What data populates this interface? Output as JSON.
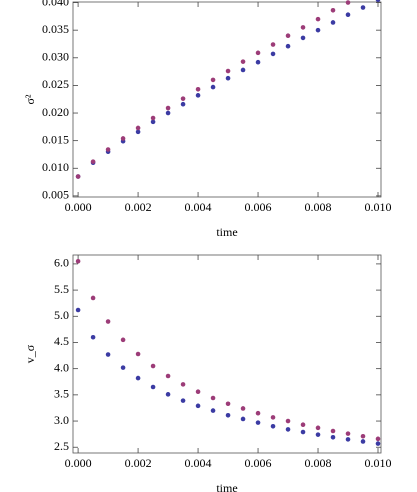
{
  "chart_data": [
    {
      "type": "scatter",
      "xlabel": "time",
      "ylabel": "σ²",
      "xlim": [
        -0.00017,
        0.0101
      ],
      "ylim": [
        0.0048,
        0.0401
      ],
      "xticks": [
        {
          "value": 0,
          "label": "0.000"
        },
        {
          "value": 0.002,
          "label": "0.002"
        },
        {
          "value": 0.004,
          "label": "0.004"
        },
        {
          "value": 0.006,
          "label": "0.006"
        },
        {
          "value": 0.008,
          "label": "0.008"
        },
        {
          "value": 0.01,
          "label": "0.010"
        }
      ],
      "yticks": [
        {
          "value": 0.005,
          "label": "0.005"
        },
        {
          "value": 0.01,
          "label": "0.010"
        },
        {
          "value": 0.015,
          "label": "0.015"
        },
        {
          "value": 0.02,
          "label": "0.020"
        },
        {
          "value": 0.025,
          "label": "0.025"
        },
        {
          "value": 0.03,
          "label": "0.030"
        },
        {
          "value": 0.035,
          "label": "0.035"
        },
        {
          "value": 0.04,
          "label": "0.040"
        }
      ],
      "series": [
        {
          "color": "#3b3ba3",
          "x": [
            0,
            0.0005,
            0.001,
            0.0015,
            0.002,
            0.0025,
            0.003,
            0.0035,
            0.004,
            0.0045,
            0.005,
            0.0055,
            0.006,
            0.0065,
            0.007,
            0.0075,
            0.008,
            0.0085,
            0.009,
            0.0095,
            0.01
          ],
          "values": [
            0.0085,
            0.011,
            0.013,
            0.0149,
            0.0166,
            0.0184,
            0.02,
            0.0216,
            0.0232,
            0.0247,
            0.0263,
            0.0278,
            0.0292,
            0.0307,
            0.0321,
            0.0336,
            0.035,
            0.0364,
            0.0378,
            0.0391,
            0.0405
          ]
        },
        {
          "color": "#9c3c78",
          "x": [
            0,
            0.0005,
            0.001,
            0.0015,
            0.002,
            0.0025,
            0.003,
            0.0035,
            0.004,
            0.0045,
            0.005,
            0.0055,
            0.006,
            0.0065,
            0.007,
            0.0075,
            0.008,
            0.0085,
            0.009
          ],
          "values": [
            0.0085,
            0.0112,
            0.0134,
            0.0154,
            0.0173,
            0.0191,
            0.0209,
            0.0226,
            0.0243,
            0.026,
            0.0276,
            0.0293,
            0.0309,
            0.0324,
            0.034,
            0.0355,
            0.037,
            0.0386,
            0.04
          ]
        }
      ]
    },
    {
      "type": "scatter",
      "xlabel": "time",
      "ylabel": "v_σ",
      "xlim": [
        -0.00017,
        0.0101
      ],
      "ylim": [
        2.39,
        6.17
      ],
      "xticks": [
        {
          "value": 0,
          "label": "0.000"
        },
        {
          "value": 0.002,
          "label": "0.002"
        },
        {
          "value": 0.004,
          "label": "0.004"
        },
        {
          "value": 0.006,
          "label": "0.006"
        },
        {
          "value": 0.008,
          "label": "0.008"
        },
        {
          "value": 0.01,
          "label": "0.010"
        }
      ],
      "yticks": [
        2.5,
        {
          "value": 3,
          "label": "3.0"
        },
        3.5,
        {
          "value": 4,
          "label": "4.0"
        },
        4.5,
        {
          "value": 5,
          "label": "5.0"
        },
        5.5,
        {
          "value": 6,
          "label": "6.0"
        }
      ],
      "series": [
        {
          "color": "#3b3ba3",
          "x": [
            0,
            0.0005,
            0.001,
            0.0015,
            0.002,
            0.0025,
            0.003,
            0.0035,
            0.004,
            0.0045,
            0.005,
            0.0055,
            0.006,
            0.0065,
            0.007,
            0.0075,
            0.008,
            0.0085,
            0.009,
            0.0095,
            0.01
          ],
          "values": [
            5.12,
            4.6,
            4.27,
            4.02,
            3.82,
            3.65,
            3.51,
            3.39,
            3.29,
            3.2,
            3.11,
            3.04,
            2.97,
            2.9,
            2.84,
            2.79,
            2.74,
            2.69,
            2.65,
            2.61,
            2.57
          ]
        },
        {
          "color": "#9c3c78",
          "x": [
            0,
            0.0005,
            0.001,
            0.0015,
            0.002,
            0.0025,
            0.003,
            0.0035,
            0.004,
            0.0045,
            0.005,
            0.0055,
            0.006,
            0.0065,
            0.007,
            0.0075,
            0.008,
            0.0085,
            0.009,
            0.0095,
            0.01
          ],
          "values": [
            6.05,
            5.35,
            4.9,
            4.55,
            4.28,
            4.05,
            3.86,
            3.7,
            3.56,
            3.44,
            3.33,
            3.24,
            3.15,
            3.07,
            3.0,
            2.93,
            2.87,
            2.81,
            2.76,
            2.71,
            2.66
          ]
        }
      ]
    }
  ]
}
